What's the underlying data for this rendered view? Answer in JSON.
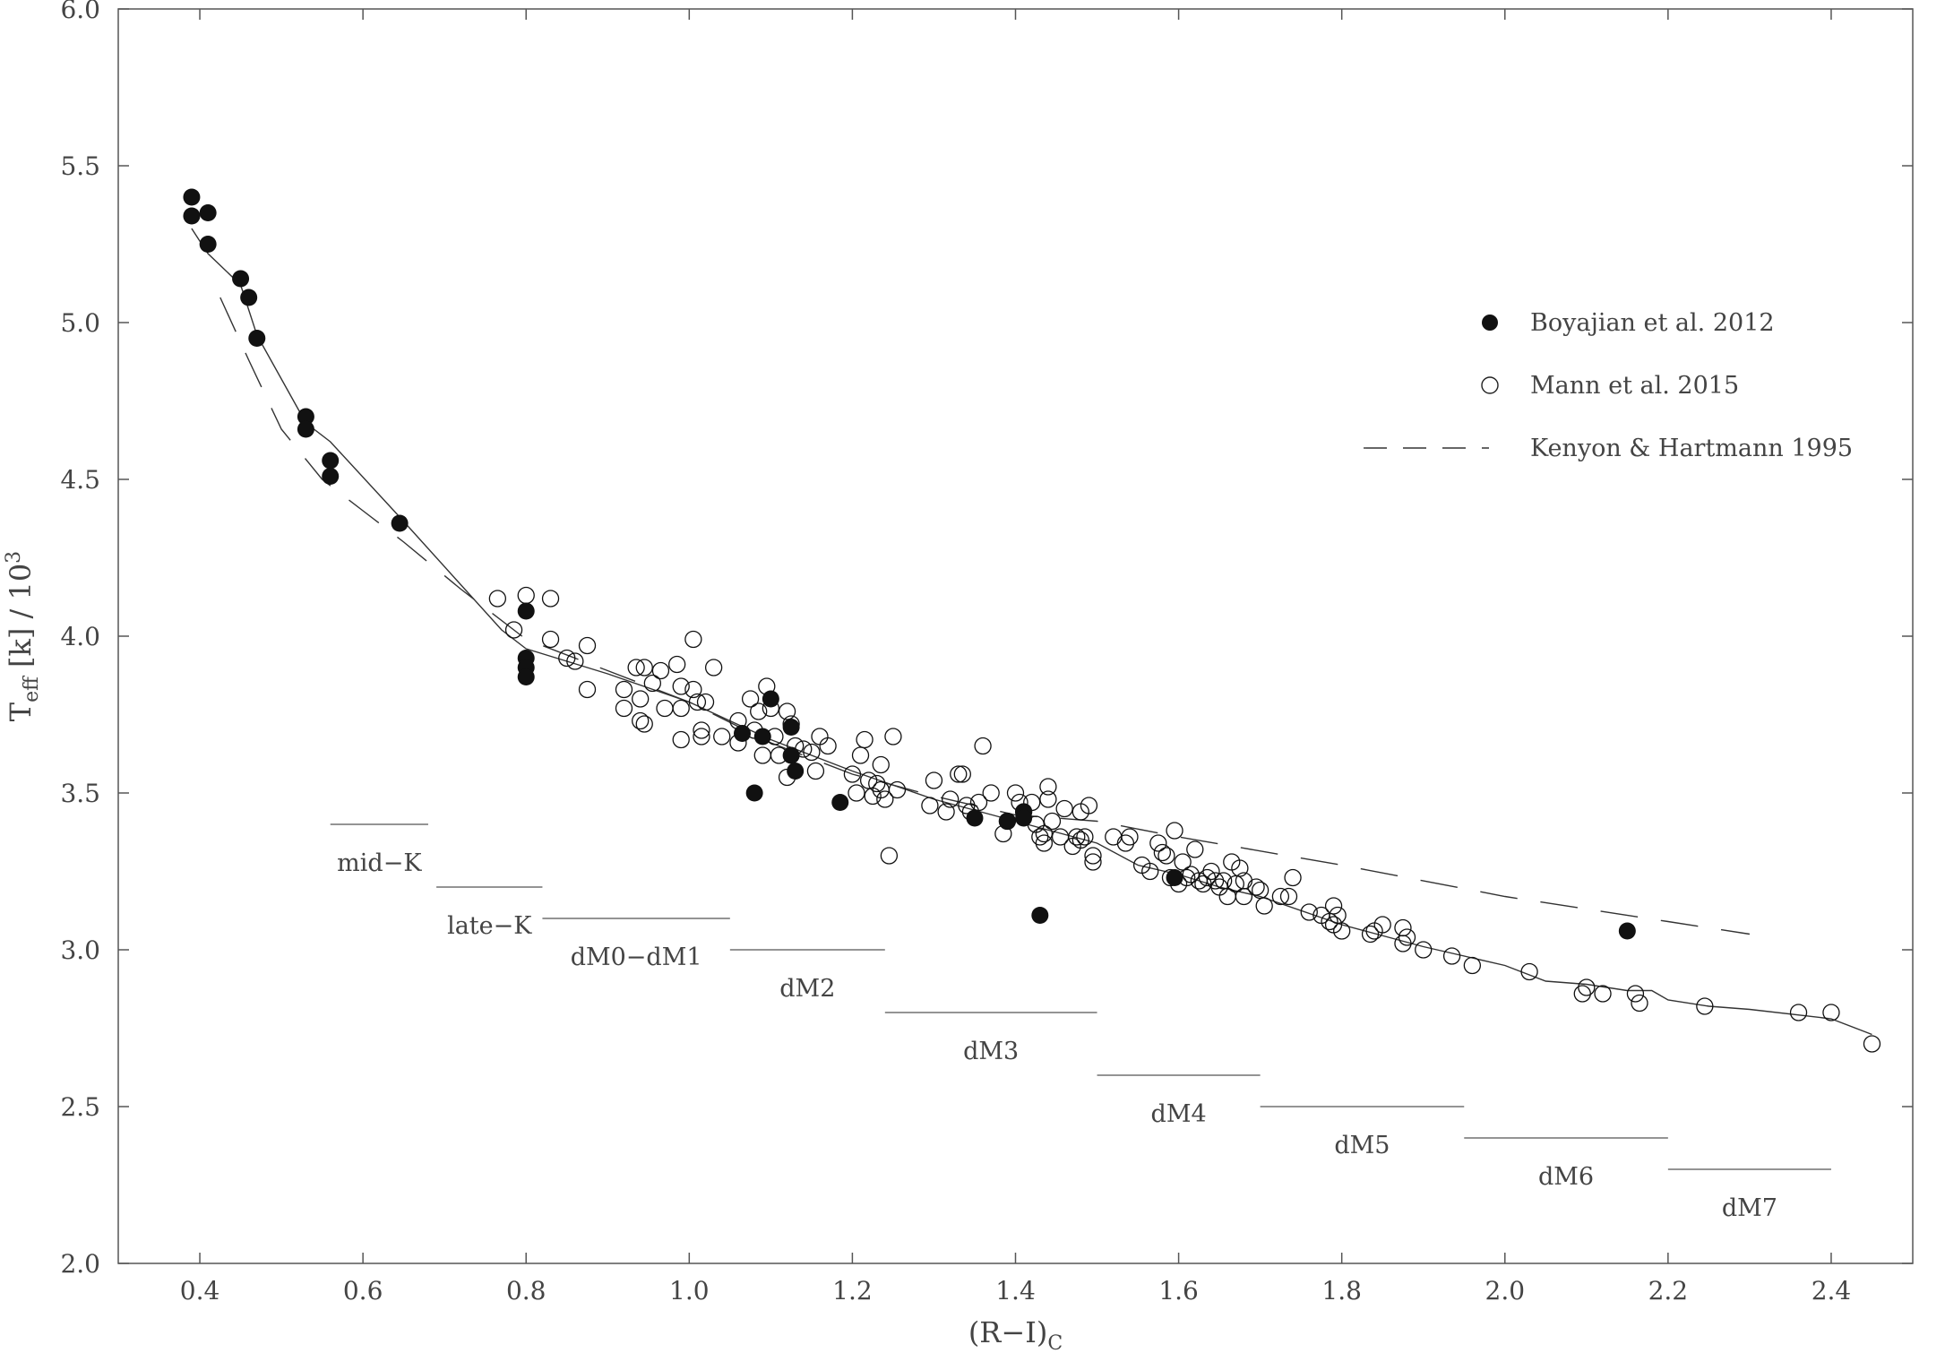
{
  "chart_data": {
    "type": "scatter",
    "title": "",
    "xlabel": "(R−I)",
    "xlabel_sub": "C",
    "ylabel_main": "T",
    "ylabel_sub": "eff",
    "ylabel_rest": " [k] / 10",
    "ylabel_sup": "3",
    "xlim": [
      0.3,
      2.5
    ],
    "ylim": [
      2.0,
      6.0
    ],
    "xticks": [
      0.4,
      0.6,
      0.8,
      1.0,
      1.2,
      1.4,
      1.6,
      1.8,
      2.0,
      2.2,
      2.4
    ],
    "xtick_labels": [
      "0.4",
      "0.6",
      "0.8",
      "1.0",
      "1.2",
      "1.4",
      "1.6",
      "1.8",
      "2.0",
      "2.2",
      "2.4"
    ],
    "yticks": [
      2.0,
      2.5,
      3.0,
      3.5,
      4.0,
      4.5,
      5.0,
      5.5,
      6.0
    ],
    "ytick_labels": [
      "2.0",
      "2.5",
      "3.0",
      "3.5",
      "4.0",
      "4.5",
      "5.0",
      "5.5",
      "6.0"
    ],
    "grid": false,
    "legend_position": "right",
    "series": [
      {
        "name": "Boyajian et al. 2012",
        "marker": "filled-circle",
        "color": "#111111",
        "points": [
          [
            0.39,
            5.4
          ],
          [
            0.39,
            5.34
          ],
          [
            0.41,
            5.35
          ],
          [
            0.41,
            5.25
          ],
          [
            0.45,
            5.14
          ],
          [
            0.46,
            5.08
          ],
          [
            0.47,
            4.95
          ],
          [
            0.53,
            4.7
          ],
          [
            0.53,
            4.66
          ],
          [
            0.56,
            4.56
          ],
          [
            0.56,
            4.51
          ],
          [
            0.645,
            4.36
          ],
          [
            0.8,
            4.08
          ],
          [
            0.8,
            3.93
          ],
          [
            0.8,
            3.9
          ],
          [
            0.8,
            3.87
          ],
          [
            1.065,
            3.69
          ],
          [
            1.09,
            3.68
          ],
          [
            1.1,
            3.8
          ],
          [
            1.125,
            3.71
          ],
          [
            1.125,
            3.62
          ],
          [
            1.13,
            3.57
          ],
          [
            1.08,
            3.5
          ],
          [
            1.185,
            3.47
          ],
          [
            1.35,
            3.42
          ],
          [
            1.39,
            3.41
          ],
          [
            1.41,
            3.44
          ],
          [
            1.41,
            3.42
          ],
          [
            1.43,
            3.11
          ],
          [
            1.595,
            3.23
          ],
          [
            2.15,
            3.06
          ]
        ]
      },
      {
        "name": "Mann et al. 2015",
        "marker": "open-circle",
        "color": "#111111",
        "points": [
          [
            0.765,
            4.12
          ],
          [
            0.785,
            4.02
          ],
          [
            0.8,
            4.13
          ],
          [
            0.83,
            4.12
          ],
          [
            0.83,
            3.99
          ],
          [
            0.85,
            3.93
          ],
          [
            0.86,
            3.92
          ],
          [
            0.875,
            3.97
          ],
          [
            0.875,
            3.83
          ],
          [
            0.92,
            3.83
          ],
          [
            0.92,
            3.77
          ],
          [
            0.935,
            3.9
          ],
          [
            0.945,
            3.9
          ],
          [
            0.94,
            3.8
          ],
          [
            0.94,
            3.73
          ],
          [
            0.945,
            3.72
          ],
          [
            0.955,
            3.85
          ],
          [
            0.965,
            3.89
          ],
          [
            0.97,
            3.77
          ],
          [
            0.985,
            3.91
          ],
          [
            0.99,
            3.84
          ],
          [
            0.99,
            3.77
          ],
          [
            0.99,
            3.67
          ],
          [
            1.005,
            3.99
          ],
          [
            1.005,
            3.83
          ],
          [
            1.01,
            3.79
          ],
          [
            1.015,
            3.7
          ],
          [
            1.015,
            3.68
          ],
          [
            1.02,
            3.79
          ],
          [
            1.03,
            3.9
          ],
          [
            1.04,
            3.68
          ],
          [
            1.06,
            3.73
          ],
          [
            1.06,
            3.66
          ],
          [
            1.075,
            3.8
          ],
          [
            1.08,
            3.7
          ],
          [
            1.085,
            3.76
          ],
          [
            1.09,
            3.62
          ],
          [
            1.095,
            3.84
          ],
          [
            1.1,
            3.77
          ],
          [
            1.105,
            3.68
          ],
          [
            1.11,
            3.62
          ],
          [
            1.12,
            3.76
          ],
          [
            1.12,
            3.55
          ],
          [
            1.125,
            3.72
          ],
          [
            1.13,
            3.65
          ],
          [
            1.14,
            3.64
          ],
          [
            1.15,
            3.63
          ],
          [
            1.155,
            3.57
          ],
          [
            1.16,
            3.68
          ],
          [
            1.17,
            3.65
          ],
          [
            1.2,
            3.56
          ],
          [
            1.205,
            3.5
          ],
          [
            1.21,
            3.62
          ],
          [
            1.215,
            3.67
          ],
          [
            1.22,
            3.54
          ],
          [
            1.225,
            3.49
          ],
          [
            1.23,
            3.53
          ],
          [
            1.235,
            3.59
          ],
          [
            1.235,
            3.51
          ],
          [
            1.24,
            3.48
          ],
          [
            1.245,
            3.3
          ],
          [
            1.25,
            3.68
          ],
          [
            1.255,
            3.51
          ],
          [
            1.295,
            3.46
          ],
          [
            1.3,
            3.54
          ],
          [
            1.315,
            3.44
          ],
          [
            1.32,
            3.48
          ],
          [
            1.33,
            3.56
          ],
          [
            1.335,
            3.56
          ],
          [
            1.34,
            3.46
          ],
          [
            1.345,
            3.44
          ],
          [
            1.355,
            3.47
          ],
          [
            1.36,
            3.65
          ],
          [
            1.37,
            3.5
          ],
          [
            1.385,
            3.37
          ],
          [
            1.39,
            3.41
          ],
          [
            1.4,
            3.5
          ],
          [
            1.405,
            3.47
          ],
          [
            1.41,
            3.44
          ],
          [
            1.42,
            3.47
          ],
          [
            1.425,
            3.4
          ],
          [
            1.43,
            3.36
          ],
          [
            1.435,
            3.34
          ],
          [
            1.435,
            3.37
          ],
          [
            1.44,
            3.52
          ],
          [
            1.44,
            3.48
          ],
          [
            1.445,
            3.41
          ],
          [
            1.455,
            3.36
          ],
          [
            1.46,
            3.45
          ],
          [
            1.47,
            3.33
          ],
          [
            1.475,
            3.36
          ],
          [
            1.48,
            3.44
          ],
          [
            1.48,
            3.35
          ],
          [
            1.485,
            3.36
          ],
          [
            1.49,
            3.46
          ],
          [
            1.495,
            3.3
          ],
          [
            1.495,
            3.28
          ],
          [
            1.52,
            3.36
          ],
          [
            1.535,
            3.34
          ],
          [
            1.54,
            3.36
          ],
          [
            1.555,
            3.27
          ],
          [
            1.565,
            3.25
          ],
          [
            1.575,
            3.34
          ],
          [
            1.58,
            3.31
          ],
          [
            1.585,
            3.3
          ],
          [
            1.59,
            3.23
          ],
          [
            1.595,
            3.38
          ],
          [
            1.6,
            3.21
          ],
          [
            1.605,
            3.28
          ],
          [
            1.61,
            3.23
          ],
          [
            1.615,
            3.24
          ],
          [
            1.62,
            3.32
          ],
          [
            1.625,
            3.22
          ],
          [
            1.63,
            3.21
          ],
          [
            1.635,
            3.23
          ],
          [
            1.64,
            3.25
          ],
          [
            1.645,
            3.22
          ],
          [
            1.65,
            3.2
          ],
          [
            1.655,
            3.22
          ],
          [
            1.66,
            3.17
          ],
          [
            1.665,
            3.28
          ],
          [
            1.67,
            3.21
          ],
          [
            1.675,
            3.26
          ],
          [
            1.68,
            3.17
          ],
          [
            1.68,
            3.22
          ],
          [
            1.695,
            3.2
          ],
          [
            1.7,
            3.19
          ],
          [
            1.705,
            3.14
          ],
          [
            1.725,
            3.17
          ],
          [
            1.735,
            3.17
          ],
          [
            1.74,
            3.23
          ],
          [
            1.76,
            3.12
          ],
          [
            1.775,
            3.11
          ],
          [
            1.785,
            3.09
          ],
          [
            1.79,
            3.14
          ],
          [
            1.79,
            3.08
          ],
          [
            1.795,
            3.11
          ],
          [
            1.8,
            3.06
          ],
          [
            1.835,
            3.05
          ],
          [
            1.84,
            3.06
          ],
          [
            1.85,
            3.08
          ],
          [
            1.875,
            3.07
          ],
          [
            1.875,
            3.02
          ],
          [
            1.88,
            3.04
          ],
          [
            1.9,
            3.0
          ],
          [
            1.935,
            2.98
          ],
          [
            1.96,
            2.95
          ],
          [
            2.03,
            2.93
          ],
          [
            2.095,
            2.86
          ],
          [
            2.1,
            2.88
          ],
          [
            2.12,
            2.86
          ],
          [
            2.16,
            2.86
          ],
          [
            2.165,
            2.83
          ],
          [
            2.245,
            2.82
          ],
          [
            2.36,
            2.8
          ],
          [
            2.4,
            2.8
          ],
          [
            2.45,
            2.7
          ]
        ]
      },
      {
        "name": "Kenyon & Hartmann 1995",
        "marker": "dashed-line",
        "color": "#333333",
        "points": [
          [
            0.425,
            5.08
          ],
          [
            0.46,
            4.88
          ],
          [
            0.5,
            4.66
          ],
          [
            0.55,
            4.5
          ],
          [
            0.6,
            4.4
          ],
          [
            0.65,
            4.3
          ],
          [
            0.72,
            4.15
          ],
          [
            0.8,
            3.99
          ],
          [
            0.9,
            3.89
          ],
          [
            1.0,
            3.79
          ],
          [
            1.1,
            3.66
          ],
          [
            1.2,
            3.56
          ],
          [
            1.3,
            3.49
          ],
          [
            1.4,
            3.43
          ],
          [
            1.5,
            3.41
          ],
          [
            1.6,
            3.36
          ],
          [
            1.8,
            3.27
          ],
          [
            2.0,
            3.17
          ],
          [
            2.2,
            3.09
          ],
          [
            2.3,
            3.05
          ]
        ]
      },
      {
        "name": "",
        "marker": "solid-line",
        "color": "#333333",
        "points": [
          [
            0.39,
            5.3
          ],
          [
            0.41,
            5.22
          ],
          [
            0.45,
            5.12
          ],
          [
            0.47,
            4.96
          ],
          [
            0.53,
            4.68
          ],
          [
            0.56,
            4.62
          ],
          [
            0.645,
            4.38
          ],
          [
            0.77,
            4.02
          ],
          [
            0.8,
            3.96
          ],
          [
            0.85,
            3.92
          ],
          [
            0.9,
            3.88
          ],
          [
            1.0,
            3.79
          ],
          [
            1.05,
            3.73
          ],
          [
            1.1,
            3.67
          ],
          [
            1.2,
            3.57
          ],
          [
            1.3,
            3.48
          ],
          [
            1.4,
            3.41
          ],
          [
            1.5,
            3.34
          ],
          [
            1.55,
            3.27
          ],
          [
            1.6,
            3.24
          ],
          [
            1.65,
            3.2
          ],
          [
            1.7,
            3.17
          ],
          [
            1.8,
            3.08
          ],
          [
            1.9,
            3.01
          ],
          [
            2.0,
            2.95
          ],
          [
            2.05,
            2.9
          ],
          [
            2.1,
            2.89
          ],
          [
            2.15,
            2.87
          ],
          [
            2.18,
            2.87
          ],
          [
            2.2,
            2.84
          ],
          [
            2.25,
            2.82
          ],
          [
            2.3,
            2.81
          ],
          [
            2.4,
            2.78
          ],
          [
            2.45,
            2.73
          ]
        ]
      }
    ],
    "spectral_bands": [
      {
        "label": "mid−K",
        "x": [
          0.56,
          0.68
        ],
        "y": 3.4
      },
      {
        "label": "late−K",
        "x": [
          0.69,
          0.82
        ],
        "y": 3.2
      },
      {
        "label": "dM0−dM1",
        "x": [
          0.82,
          1.05
        ],
        "y": 3.1
      },
      {
        "label": "dM2",
        "x": [
          1.05,
          1.24
        ],
        "y": 3.0
      },
      {
        "label": "dM3",
        "x": [
          1.24,
          1.5
        ],
        "y": 2.8
      },
      {
        "label": "dM4",
        "x": [
          1.5,
          1.7
        ],
        "y": 2.6
      },
      {
        "label": "dM5",
        "x": [
          1.7,
          1.95
        ],
        "y": 2.5
      },
      {
        "label": "dM6",
        "x": [
          1.95,
          2.2
        ],
        "y": 2.4
      },
      {
        "label": "dM7",
        "x": [
          2.2,
          2.4
        ],
        "y": 2.3
      }
    ]
  }
}
